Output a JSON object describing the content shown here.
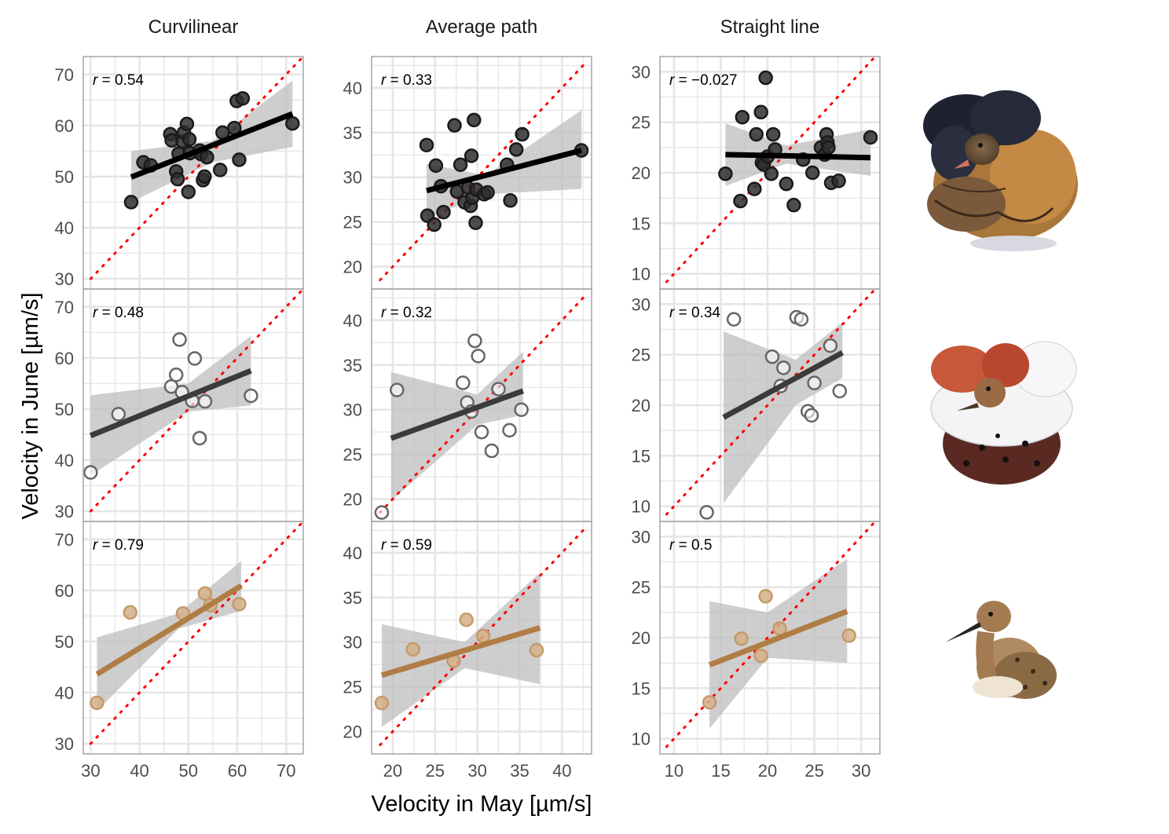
{
  "figure": {
    "xlabel": "Velocity in May [µm/s]",
    "ylabel": "Velocity in June [µm/s]",
    "column_titles": [
      "Curvilinear",
      "Average path",
      "Straight line"
    ],
    "row_images": [
      "independent-ruff-male-illustration",
      "satellite-ruff-male-illustration",
      "faeder-ruff-illustration"
    ],
    "colors": {
      "independent": "#1a1a1a",
      "satellite": "#4d4d4d",
      "faeder": "#b07d45",
      "reference_line": "#ff0000",
      "ribbon": "#bdbdbd",
      "grid": "#e6e6e6",
      "panel_border": "#a6a6a6"
    }
  },
  "chart_data": [
    {
      "type": "scatter",
      "row": 0,
      "col": 0,
      "marker": "filled",
      "r_text": " = 0.54",
      "xlim": [
        28.5,
        73.5
      ],
      "ylim": [
        28,
        73.5
      ],
      "xticks": [
        30,
        40,
        50,
        60,
        70
      ],
      "yticks": [
        30,
        40,
        50,
        60,
        70
      ],
      "points": [
        [
          38.3,
          45
        ],
        [
          40.8,
          52.8
        ],
        [
          42.3,
          52.2
        ],
        [
          46.3,
          58.3
        ],
        [
          46.6,
          57.1
        ],
        [
          47.5,
          51
        ],
        [
          47.8,
          49.5
        ],
        [
          48,
          54.5
        ],
        [
          48.8,
          56.9
        ],
        [
          49.1,
          58.6
        ],
        [
          49.7,
          60.3
        ],
        [
          50,
          47
        ],
        [
          50.2,
          57.3
        ],
        [
          50.3,
          54.6
        ],
        [
          52.3,
          55.1
        ],
        [
          52.6,
          54.4
        ],
        [
          53,
          49.3
        ],
        [
          53.3,
          50
        ],
        [
          53.8,
          53.8
        ],
        [
          56.5,
          51.3
        ],
        [
          57,
          58.6
        ],
        [
          59.4,
          59.5
        ],
        [
          59.9,
          64.8
        ],
        [
          60.4,
          53.3
        ],
        [
          61.1,
          65.3
        ],
        [
          71.3,
          60.4
        ]
      ],
      "fit": {
        "x": [
          38.3,
          71.3
        ],
        "y": [
          49.9,
          62.3
        ]
      },
      "ribbon": {
        "x": [
          38.3,
          55,
          71.3
        ],
        "lo": [
          45,
          52.8,
          55.8
        ],
        "hi": [
          55,
          57,
          68.8
        ]
      },
      "ref": [
        30,
        73.5
      ]
    },
    {
      "type": "scatter",
      "row": 0,
      "col": 1,
      "marker": "filled",
      "r_text": " = 0.33",
      "xlim": [
        17.5,
        43.5
      ],
      "ylim": [
        17.5,
        43.5
      ],
      "xticks": [
        20,
        25,
        30,
        35,
        40
      ],
      "yticks": [
        20,
        25,
        30,
        35,
        40
      ],
      "points": [
        [
          24,
          33.6
        ],
        [
          24.1,
          25.7
        ],
        [
          24.9,
          24.7
        ],
        [
          25.1,
          31.3
        ],
        [
          25.7,
          29
        ],
        [
          26,
          26.1
        ],
        [
          27.3,
          35.8
        ],
        [
          27.6,
          28.4
        ],
        [
          28,
          31.4
        ],
        [
          28.5,
          27.2
        ],
        [
          28.9,
          28.8
        ],
        [
          29.2,
          26.8
        ],
        [
          29.3,
          32.4
        ],
        [
          29.4,
          27.7
        ],
        [
          29.6,
          36.4
        ],
        [
          29.8,
          24.9
        ],
        [
          29.9,
          28.6
        ],
        [
          30.8,
          28.1
        ],
        [
          31.2,
          28.3
        ],
        [
          33.5,
          31.4
        ],
        [
          33.9,
          27.4
        ],
        [
          34.6,
          33.1
        ],
        [
          35.3,
          34.8
        ],
        [
          42.3,
          33
        ]
      ],
      "fit": {
        "x": [
          24,
          42.3
        ],
        "y": [
          28.5,
          33
        ]
      },
      "ribbon": {
        "x": [
          24,
          31,
          42.3
        ],
        "lo": [
          25.4,
          28.1,
          28.7
        ],
        "hi": [
          31.5,
          30.2,
          37.5
        ]
      },
      "ref": [
        18.5,
        43
      ]
    },
    {
      "type": "scatter",
      "row": 0,
      "col": 2,
      "marker": "filled",
      "r_text": " = −0.027",
      "xlim": [
        8.5,
        32
      ],
      "ylim": [
        8.5,
        31.5
      ],
      "xticks": [
        10,
        15,
        20,
        25,
        30
      ],
      "yticks": [
        10,
        15,
        20,
        25,
        30
      ],
      "points": [
        [
          15.5,
          19.9
        ],
        [
          17.1,
          17.2
        ],
        [
          17.3,
          25.5
        ],
        [
          18.6,
          18.4
        ],
        [
          18.8,
          23.8
        ],
        [
          19.3,
          26
        ],
        [
          19.4,
          21
        ],
        [
          19.6,
          20.8
        ],
        [
          19.8,
          29.4
        ],
        [
          20,
          21.6
        ],
        [
          20.4,
          19.9
        ],
        [
          20.6,
          23.8
        ],
        [
          20.8,
          22.3
        ],
        [
          22,
          18.9
        ],
        [
          22.8,
          16.8
        ],
        [
          23.8,
          21.3
        ],
        [
          24.8,
          20
        ],
        [
          25.7,
          22.5
        ],
        [
          26.1,
          21.8
        ],
        [
          26.3,
          23.8
        ],
        [
          26.4,
          23
        ],
        [
          26.5,
          22.5
        ],
        [
          26.8,
          19
        ],
        [
          27.6,
          19.2
        ],
        [
          31,
          23.5
        ]
      ],
      "fit": {
        "x": [
          15.5,
          31
        ],
        "y": [
          21.8,
          21.5
        ]
      },
      "ribbon": {
        "x": [
          15.5,
          22,
          31
        ],
        "lo": [
          18.7,
          20.9,
          19.7
        ],
        "hi": [
          24.9,
          22.7,
          24.3
        ]
      },
      "ref": [
        9.2,
        31.5
      ]
    },
    {
      "type": "scatter",
      "row": 1,
      "col": 0,
      "marker": "hollow",
      "r_text": " = 0.48",
      "xlim": [
        28.5,
        73.5
      ],
      "ylim": [
        28,
        73.5
      ],
      "xticks": [
        30,
        40,
        50,
        60,
        70
      ],
      "yticks": [
        30,
        40,
        50,
        60,
        70
      ],
      "points": [
        [
          30,
          37.6
        ],
        [
          35.7,
          49
        ],
        [
          46.5,
          54.4
        ],
        [
          47.5,
          56.7
        ],
        [
          48.2,
          63.6
        ],
        [
          48.7,
          53.3
        ],
        [
          50.8,
          51.6
        ],
        [
          51.3,
          59.9
        ],
        [
          52.3,
          44.3
        ],
        [
          53.4,
          51.5
        ],
        [
          62.8,
          52.6
        ]
      ],
      "fit": {
        "x": [
          30,
          62.8
        ],
        "y": [
          44.8,
          57.5
        ]
      },
      "ribbon": {
        "x": [
          30,
          50,
          62.8
        ],
        "lo": [
          37,
          49.5,
          50.7
        ],
        "hi": [
          52.7,
          55,
          64.3
        ]
      },
      "ref": [
        30,
        73.5
      ]
    },
    {
      "type": "scatter",
      "row": 1,
      "col": 1,
      "marker": "hollow",
      "r_text": " = 0.32",
      "xlim": [
        17.5,
        43.5
      ],
      "ylim": [
        17.5,
        43.5
      ],
      "xticks": [
        20,
        25,
        30,
        35,
        40
      ],
      "yticks": [
        20,
        25,
        30,
        35,
        40
      ],
      "points": [
        [
          18.7,
          18.5
        ],
        [
          20.5,
          32.2
        ],
        [
          28.3,
          33
        ],
        [
          28.8,
          30.8
        ],
        [
          29.3,
          29.8
        ],
        [
          29.7,
          37.7
        ],
        [
          30.1,
          36
        ],
        [
          30.5,
          27.5
        ],
        [
          31.7,
          25.4
        ],
        [
          32.5,
          32.3
        ],
        [
          33.8,
          27.7
        ],
        [
          35.2,
          30
        ]
      ],
      "fit": {
        "x": [
          19.8,
          35.4
        ],
        "y": [
          26.8,
          32.1
        ]
      },
      "ribbon": {
        "x": [
          19.8,
          30,
          35.4
        ],
        "lo": [
          19.8,
          28.3,
          29.4
        ],
        "hi": [
          34.2,
          31.7,
          36.5
        ]
      },
      "ref": [
        18.5,
        43
      ]
    },
    {
      "type": "scatter",
      "row": 1,
      "col": 2,
      "marker": "hollow",
      "r_text": " = 0.34",
      "xlim": [
        8.5,
        32
      ],
      "ylim": [
        8.5,
        31.5
      ],
      "xticks": [
        10,
        15,
        20,
        25,
        30
      ],
      "yticks": [
        10,
        15,
        20,
        25,
        30
      ],
      "points": [
        [
          13.5,
          9.4
        ],
        [
          16.4,
          28.5
        ],
        [
          20.5,
          24.8
        ],
        [
          21.4,
          21.9
        ],
        [
          21.7,
          23.7
        ],
        [
          23.1,
          28.7
        ],
        [
          23.6,
          28.5
        ],
        [
          24.3,
          19.4
        ],
        [
          24.7,
          19
        ],
        [
          25,
          22.2
        ],
        [
          26.7,
          25.9
        ],
        [
          27.7,
          21.4
        ]
      ],
      "fit": {
        "x": [
          15.3,
          28
        ],
        "y": [
          18.8,
          25.2
        ]
      },
      "ribbon": {
        "x": [
          15.3,
          23,
          28
        ],
        "lo": [
          10.3,
          20,
          22.7
        ],
        "hi": [
          27.3,
          24.5,
          28.2
        ]
      },
      "ref": [
        9.2,
        31.5
      ]
    },
    {
      "type": "scatter",
      "row": 2,
      "col": 0,
      "marker": "faeder",
      "r_text": " = 0.79",
      "xlim": [
        28.5,
        73.5
      ],
      "ylim": [
        28,
        73.5
      ],
      "xticks": [
        30,
        40,
        50,
        60,
        70
      ],
      "yticks": [
        30,
        40,
        50,
        60,
        70
      ],
      "points": [
        [
          31.3,
          38
        ],
        [
          38.1,
          55.7
        ],
        [
          48.9,
          55.5
        ],
        [
          53.4,
          59.4
        ],
        [
          54.5,
          57.1
        ],
        [
          60.4,
          57.3
        ]
      ],
      "fit": {
        "x": [
          31.3,
          60.8
        ],
        "y": [
          43.6,
          60.9
        ]
      },
      "ribbon": {
        "x": [
          31.3,
          48,
          60.8
        ],
        "lo": [
          36.4,
          52.5,
          56
        ],
        "hi": [
          50.8,
          55.5,
          65.8
        ]
      },
      "ref": [
        30,
        73.5
      ]
    },
    {
      "type": "scatter",
      "row": 2,
      "col": 1,
      "marker": "faeder",
      "r_text": " = 0.59",
      "xlim": [
        17.5,
        43.5
      ],
      "ylim": [
        17.5,
        43.5
      ],
      "xticks": [
        20,
        25,
        30,
        35,
        40
      ],
      "yticks": [
        20,
        25,
        30,
        35,
        40
      ],
      "points": [
        [
          18.7,
          23.2
        ],
        [
          22.4,
          29.2
        ],
        [
          27.2,
          27.9
        ],
        [
          28.7,
          32.5
        ],
        [
          30.7,
          30.7
        ],
        [
          37,
          29.1
        ]
      ],
      "fit": {
        "x": [
          18.7,
          37.4
        ],
        "y": [
          26.3,
          31.6
        ]
      },
      "ribbon": {
        "x": [
          18.7,
          28.5,
          37.4
        ],
        "lo": [
          20.5,
          27.1,
          25.3
        ],
        "hi": [
          32,
          30,
          37.8
        ]
      },
      "ref": [
        18.5,
        43
      ]
    },
    {
      "type": "scatter",
      "row": 2,
      "col": 2,
      "marker": "faeder",
      "r_text": " = 0.5",
      "xlim": [
        8.5,
        32
      ],
      "ylim": [
        8.5,
        31.5
      ],
      "xticks": [
        10,
        15,
        20,
        25,
        30
      ],
      "yticks": [
        10,
        15,
        20,
        25,
        30
      ],
      "points": [
        [
          13.8,
          13.6
        ],
        [
          17.2,
          19.9
        ],
        [
          19.3,
          18.2
        ],
        [
          19.8,
          24.1
        ],
        [
          21.3,
          20.9
        ],
        [
          28.7,
          20.2
        ]
      ],
      "fit": {
        "x": [
          13.8,
          28.5
        ],
        "y": [
          17.3,
          22.6
        ]
      },
      "ribbon": {
        "x": [
          13.8,
          20,
          28.5
        ],
        "lo": [
          11,
          18,
          17.5
        ],
        "hi": [
          23.6,
          22.5,
          27.8
        ]
      },
      "ref": [
        9.2,
        31.5
      ]
    }
  ]
}
